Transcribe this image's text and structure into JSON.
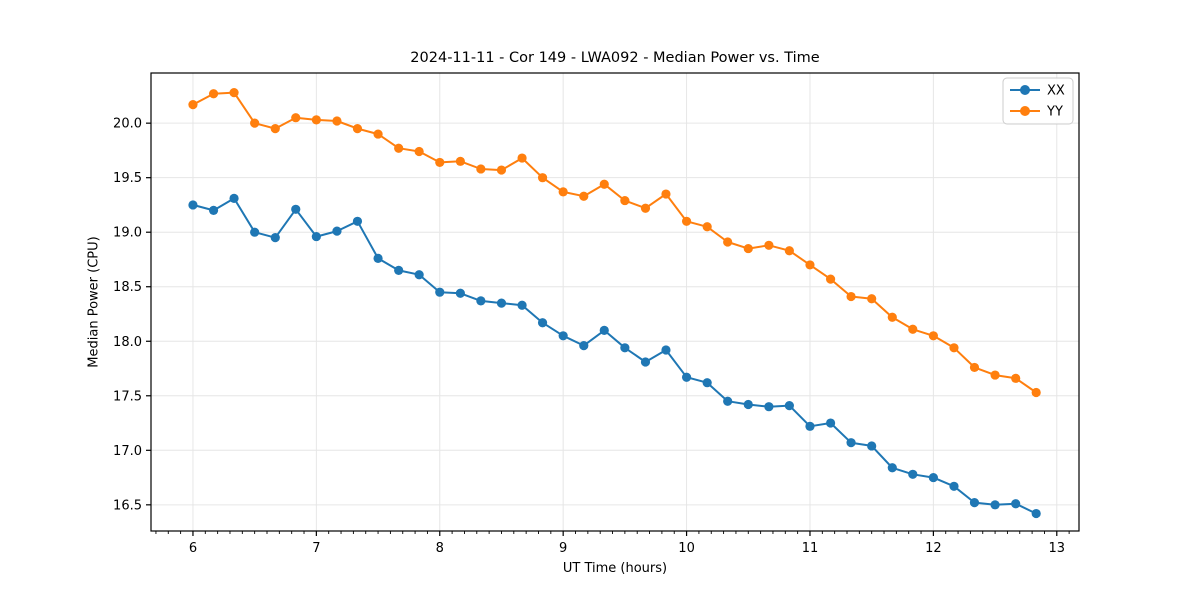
{
  "chart_data": {
    "type": "line",
    "title": "2024-11-11 - Cor 149 - LWA092 - Median Power vs. Time",
    "xlabel": "UT Time (hours)",
    "ylabel": "Median Power (CPU)",
    "xlim": [
      5.66,
      13.18
    ],
    "ylim": [
      16.26,
      20.46
    ],
    "xticks": [
      6,
      7,
      8,
      9,
      10,
      11,
      12,
      13
    ],
    "yticks": [
      16.5,
      17.0,
      17.5,
      18.0,
      18.5,
      19.0,
      19.5,
      20.0
    ],
    "minor_tick_step_x": 0.1,
    "grid": true,
    "legend_position": "upper right",
    "grid_color": "#e6e6e6",
    "spine_color": "#000000",
    "x": [
      6.0,
      6.167,
      6.333,
      6.5,
      6.667,
      6.833,
      7.0,
      7.167,
      7.333,
      7.5,
      7.667,
      7.833,
      8.0,
      8.167,
      8.333,
      8.5,
      8.667,
      8.833,
      9.0,
      9.167,
      9.333,
      9.5,
      9.667,
      9.833,
      10.0,
      10.167,
      10.333,
      10.5,
      10.667,
      10.833,
      11.0,
      11.167,
      11.333,
      11.5,
      11.667,
      11.833,
      12.0,
      12.167,
      12.333,
      12.5,
      12.667,
      12.833
    ],
    "series": [
      {
        "name": "XX",
        "color": "#1f77b4",
        "values": [
          19.25,
          19.2,
          19.31,
          19.0,
          18.95,
          19.21,
          18.96,
          19.01,
          19.1,
          18.76,
          18.65,
          18.61,
          18.45,
          18.44,
          18.37,
          18.35,
          18.33,
          18.17,
          18.05,
          17.96,
          18.1,
          17.94,
          17.81,
          17.92,
          17.67,
          17.62,
          17.45,
          17.42,
          17.4,
          17.41,
          17.22,
          17.25,
          17.07,
          17.04,
          16.84,
          16.78,
          16.75,
          16.67,
          16.52,
          16.5,
          16.51,
          16.42
        ]
      },
      {
        "name": "YY",
        "color": "#ff7f0e",
        "values": [
          20.17,
          20.27,
          20.28,
          20.0,
          19.95,
          20.05,
          20.03,
          20.02,
          19.95,
          19.9,
          19.77,
          19.74,
          19.64,
          19.65,
          19.58,
          19.57,
          19.68,
          19.5,
          19.37,
          19.33,
          19.44,
          19.29,
          19.22,
          19.35,
          19.1,
          19.05,
          18.91,
          18.85,
          18.88,
          18.83,
          18.7,
          18.57,
          18.41,
          18.39,
          18.22,
          18.11,
          18.05,
          17.94,
          17.76,
          17.69,
          17.66,
          17.53
        ]
      }
    ]
  }
}
